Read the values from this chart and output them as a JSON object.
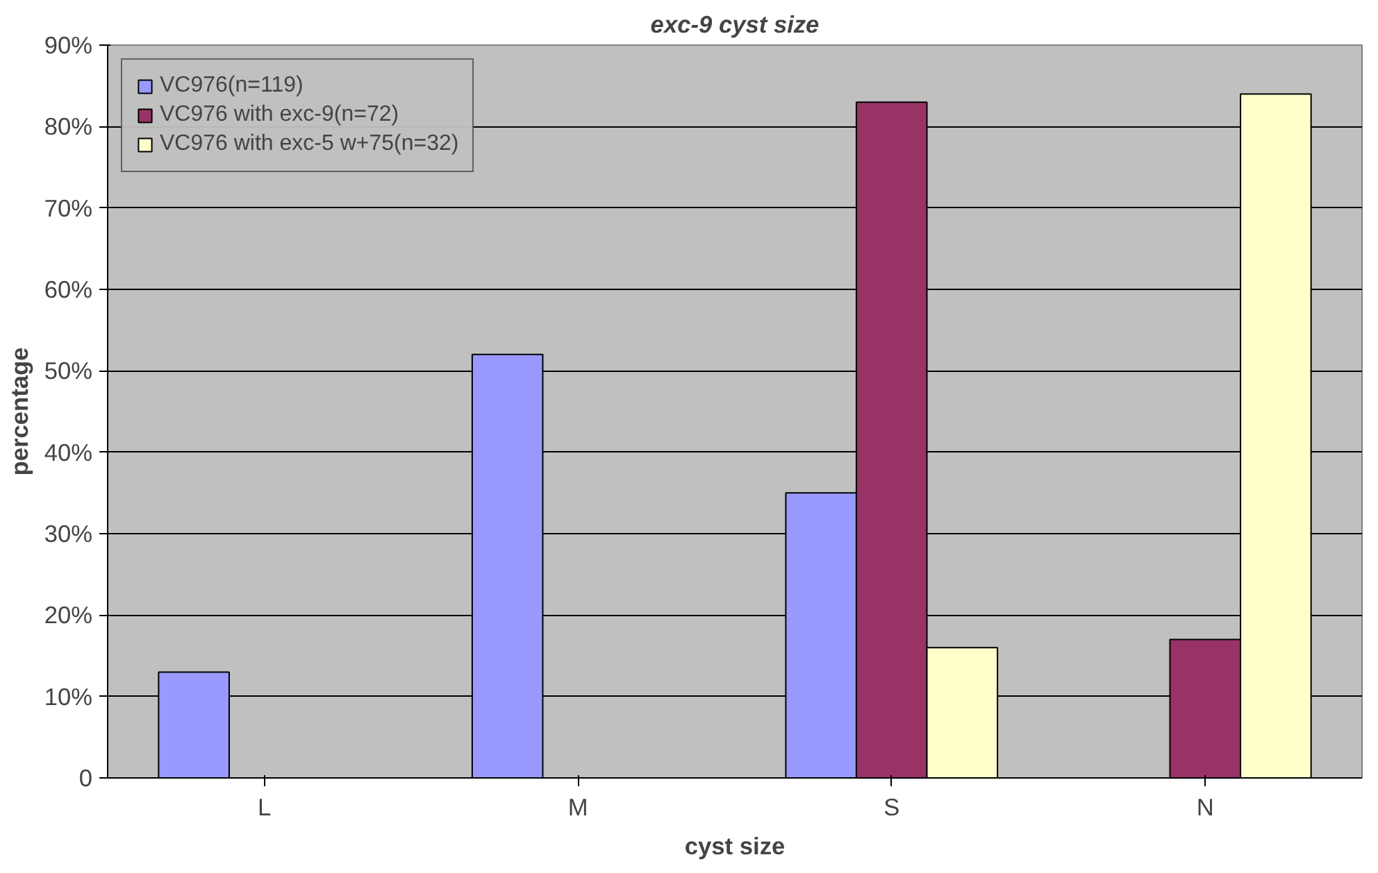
{
  "chart_data": {
    "type": "bar",
    "title": "exc-9 cyst size",
    "xlabel": "cyst size",
    "ylabel": "percentage",
    "categories": [
      "L",
      "M",
      "S",
      "N"
    ],
    "series": [
      {
        "name": "VC976(n=119)",
        "color": "#9999ff",
        "values": [
          13,
          52,
          35,
          null
        ]
      },
      {
        "name": "VC976 with exc-9(n=72)",
        "color": "#993366",
        "values": [
          null,
          null,
          83,
          17
        ]
      },
      {
        "name": "VC976 with exc-5 w+75(n=32)",
        "color": "#ffffcc",
        "values": [
          null,
          null,
          16,
          84
        ]
      }
    ],
    "ylim": [
      0,
      90
    ],
    "yticks": [
      0,
      {
        "value": 10,
        "label": "10%"
      },
      {
        "value": 20,
        "label": "20%"
      },
      {
        "value": 30,
        "label": "30%"
      },
      {
        "value": 40,
        "label": "40%"
      },
      {
        "value": 50,
        "label": "50%"
      },
      {
        "value": 60,
        "label": "60%"
      },
      {
        "value": 70,
        "label": "70%"
      },
      {
        "value": 80,
        "label": "80%"
      },
      {
        "value": 90,
        "label": "90%"
      }
    ],
    "grid": "y",
    "legend": "top left"
  }
}
